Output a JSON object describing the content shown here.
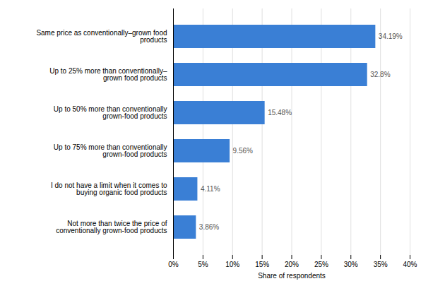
{
  "chart_data": {
    "type": "bar",
    "orientation": "horizontal",
    "categories": [
      "Not more than twice the price of\nconventionally grown-food products",
      "I do not have a limit when it comes to\nbuying organic food products",
      "Up to 75% more than conventionally\ngrown-food products",
      "Up to 50% more than conventionally\ngrown-food products",
      "Up to 25% more than conventionally–\ngrown food products",
      "Same price as conventionally–grown food\nproducts"
    ],
    "values": [
      3.86,
      4.11,
      9.56,
      15.48,
      32.8,
      34.19
    ],
    "value_labels": [
      "3.86%",
      "4.11%",
      "9.56%",
      "15.48%",
      "32.8%",
      "34.19%"
    ],
    "data_labels": true,
    "color": "#3a7fd5",
    "xlabel": "Share of respondents",
    "xlim": [
      0,
      40
    ],
    "xticks": [
      {
        "value": 0,
        "label": "0%"
      },
      {
        "value": 5,
        "label": "5%"
      },
      {
        "value": 10,
        "label": "10%"
      },
      {
        "value": 15,
        "label": "15%"
      },
      {
        "value": 20,
        "label": "20%"
      },
      {
        "value": 25,
        "label": "25%"
      },
      {
        "value": 30,
        "label": "30%"
      },
      {
        "value": 35,
        "label": "35%"
      },
      {
        "value": 40,
        "label": "40%"
      }
    ],
    "grid": true
  }
}
